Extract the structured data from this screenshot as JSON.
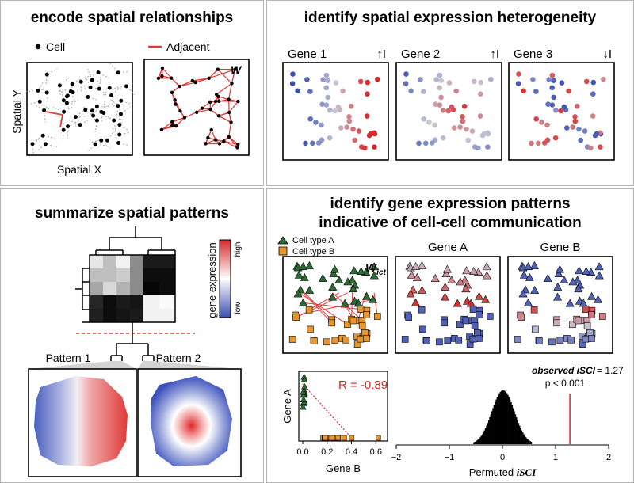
{
  "panel_spatial": {
    "title": "encode spatial relationships",
    "legend_cell": "Cell",
    "legend_adjacent": "Adjacent",
    "weight_label": "W",
    "axis_y": "Spatial Y",
    "axis_x": "Spatial X"
  },
  "panel_heterogeneity": {
    "title": "identify spatial expression heterogeneity",
    "genes": [
      {
        "name": "Gene 1",
        "stat": "↑I"
      },
      {
        "name": "Gene 2",
        "stat": "↑I"
      },
      {
        "name": "Gene 3",
        "stat": "↓I"
      }
    ]
  },
  "panel_patterns": {
    "title": "summarize spatial patterns",
    "colorbar_label": "gene expression",
    "colorbar_high": "high",
    "colorbar_low": "low",
    "pattern1": "Pattern 1",
    "pattern2": "Pattern 2"
  },
  "panel_communication": {
    "title_line1": "identify gene expression patterns",
    "title_line2": "indicative of cell-cell communication",
    "legend_a": "Cell type A",
    "legend_b": "Cell type B",
    "weight_label": "W",
    "weight_subscript": "ict",
    "gene_a": "Gene A",
    "gene_b": "Gene B",
    "scatter": {
      "r_text": "R = -0.89",
      "xlabel": "Gene B",
      "ylabel": "Gene A",
      "x_ticks": [
        "0.0",
        "0.2",
        "0.4",
        "0.6"
      ]
    },
    "histogram": {
      "observed_label": "observed iSCI",
      "observed_value": "= 1.27",
      "p_text": "p < 0.001",
      "xlabel_prefix": "Permuted ",
      "xlabel_var": "iSCI",
      "x_ticks": [
        "−2",
        "−1",
        "0",
        "1",
        "2"
      ]
    }
  },
  "colors": {
    "adjacent_red": "#e03c3c",
    "cell_type_a": "#2e6b34",
    "cell_type_b": "#e8962e",
    "high": "#d62a2a",
    "low": "#3c4fb0"
  },
  "chart_data": {
    "type": "histogram",
    "x_range": [
      -2,
      2
    ],
    "observed_iSCI": 1.27,
    "p_value": "< 0.001"
  }
}
